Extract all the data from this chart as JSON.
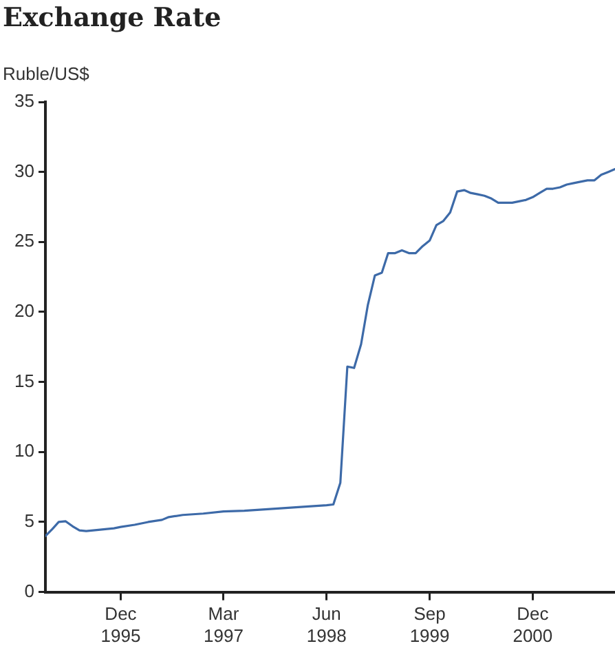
{
  "chart_data": {
    "type": "line",
    "title": "Exchange Rate",
    "ylabel": "Ruble/US$",
    "x": [
      "1995-01",
      "1995-02",
      "1995-03",
      "1995-04",
      "1995-05",
      "1995-06",
      "1995-07",
      "1995-08",
      "1995-09",
      "1995-10",
      "1995-11",
      "1995-12",
      "1996-02",
      "1996-04",
      "1996-06",
      "1996-07",
      "1996-09",
      "1996-12",
      "1997-03",
      "1997-06",
      "1997-09",
      "1997-12",
      "1998-03",
      "1998-06",
      "1998-07",
      "1998-08",
      "1998-09",
      "1998-10",
      "1998-11",
      "1998-12",
      "1999-01",
      "1999-02",
      "1999-03",
      "1999-04",
      "1999-05",
      "1999-06",
      "1999-07",
      "1999-08",
      "1999-09",
      "1999-10",
      "1999-11",
      "1999-12",
      "2000-01",
      "2000-02",
      "2000-03",
      "2000-04",
      "2000-05",
      "2000-06",
      "2000-07",
      "2000-08",
      "2000-09",
      "2000-10",
      "2000-11",
      "2000-12",
      "2001-01",
      "2001-02",
      "2001-03",
      "2001-04",
      "2001-05",
      "2001-06",
      "2001-07",
      "2001-08",
      "2001-09",
      "2001-10",
      "2001-11",
      "2001-12"
    ],
    "series": [
      {
        "color": "#3d6aa8",
        "values": [
          4.0,
          4.5,
          5.0,
          5.05,
          4.7,
          4.4,
          4.35,
          4.4,
          4.45,
          4.5,
          4.55,
          4.65,
          4.8,
          5.0,
          5.15,
          5.35,
          5.5,
          5.6,
          5.75,
          5.8,
          5.9,
          6.0,
          6.1,
          6.2,
          6.25,
          7.8,
          16.1,
          16.0,
          17.7,
          20.5,
          22.6,
          22.8,
          24.2,
          24.2,
          24.4,
          24.2,
          24.2,
          24.7,
          25.1,
          26.2,
          26.5,
          27.1,
          28.6,
          28.7,
          28.5,
          28.4,
          28.3,
          28.1,
          27.8,
          27.8,
          27.8,
          27.9,
          28.0,
          28.2,
          28.5,
          28.8,
          28.8,
          28.9,
          29.1,
          29.2,
          29.3,
          29.4,
          29.4,
          29.8,
          30.0,
          30.2
        ]
      }
    ],
    "xlim": [
      "1995-01",
      "2001-12"
    ],
    "xticks": [
      {
        "value": "1995-12",
        "label": "Dec 1995"
      },
      {
        "value": "1997-03",
        "label": "Mar 1997"
      },
      {
        "value": "1998-06",
        "label": "Jun 1998"
      },
      {
        "value": "1999-09",
        "label": "Sep 1999"
      },
      {
        "value": "2000-12",
        "label": "Dec 2000"
      }
    ],
    "ylim": [
      0,
      35
    ],
    "yticks": [
      0,
      5,
      10,
      15,
      20,
      25,
      30,
      35
    ],
    "grid": false,
    "legend": false,
    "marker": "none",
    "line_style": "solid"
  }
}
